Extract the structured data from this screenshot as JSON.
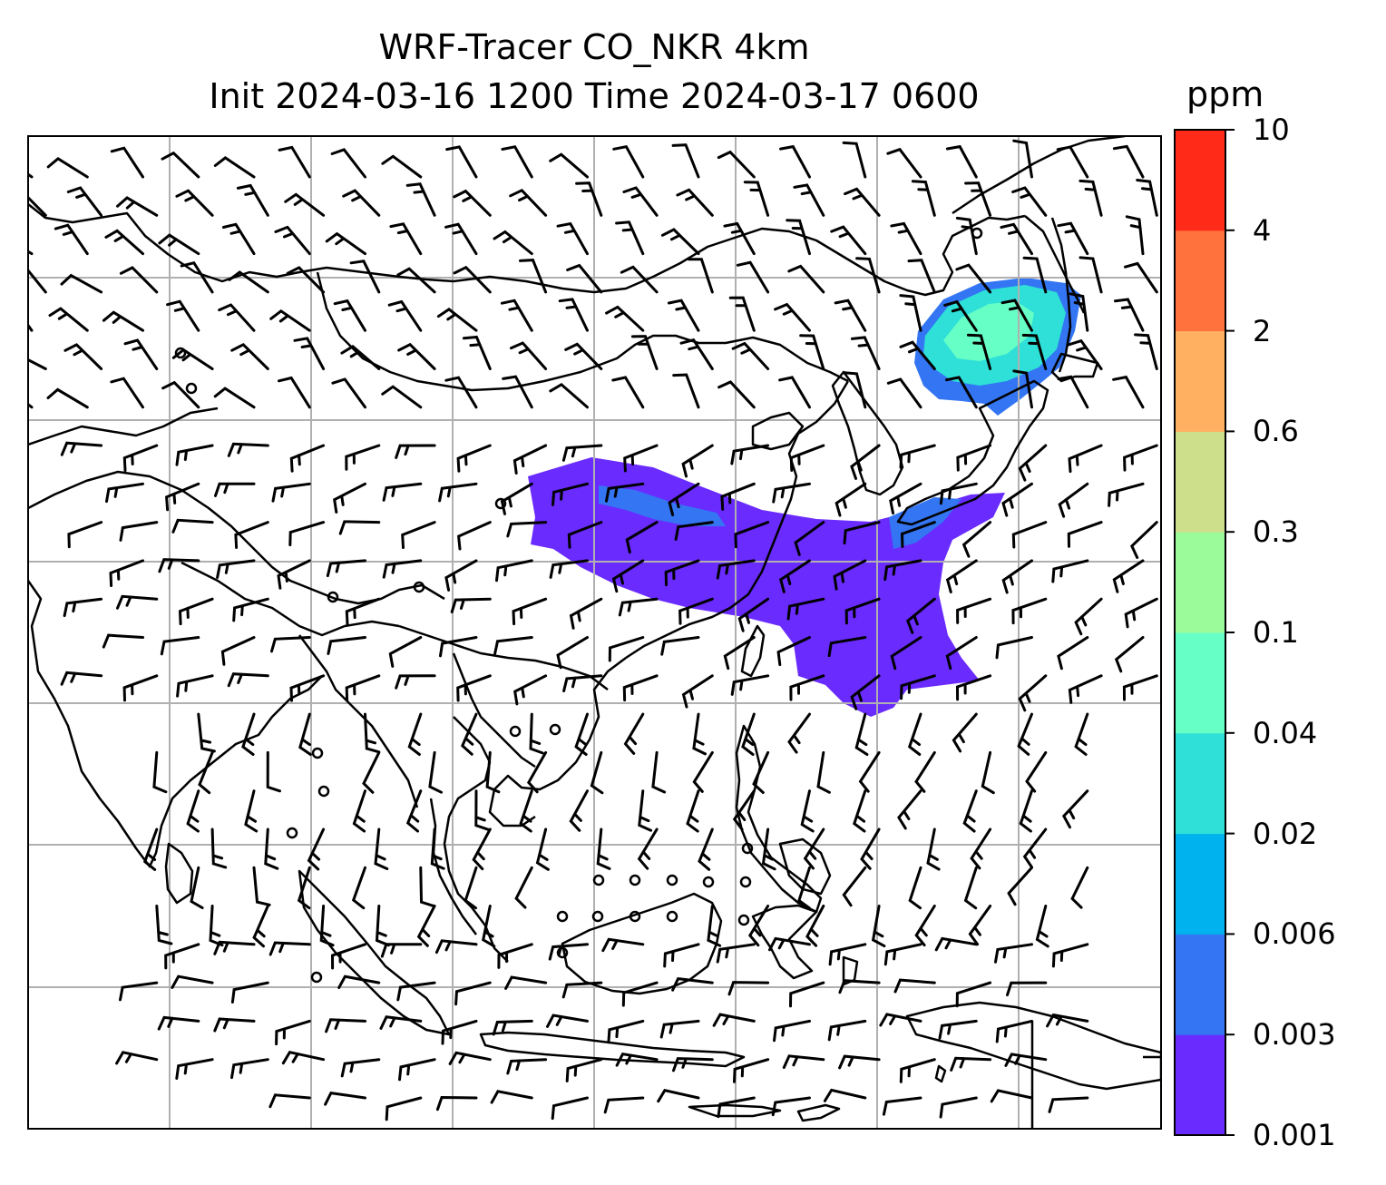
{
  "title": {
    "line1": "WRF-Tracer CO_NKR 4km",
    "line2": "Init 2024-03-16 1200 Time 2024-03-17 0600"
  },
  "colorbar": {
    "unit": "ppm",
    "ticks": [
      "0.001",
      "0.003",
      "0.006",
      "0.02",
      "0.04",
      "0.1",
      "0.3",
      "0.6",
      "2",
      "4",
      "10"
    ],
    "colors": [
      "#6a2bff",
      "#3375f2",
      "#00b2ee",
      "#2ee0d7",
      "#66ffc6",
      "#9bfb9a",
      "#cddf8a",
      "#ffb061",
      "#ff723e",
      "#ff2a18"
    ]
  },
  "map": {
    "features": [
      "coastlines",
      "country-borders",
      "lat-lon-gridlines",
      "wind-barbs",
      "tracer-concentration"
    ],
    "gridline_color": "#b0b0b0",
    "plume_colors": {
      "low": "#6a2bff",
      "mid": "#3375f2",
      "high": "#2ee0d7",
      "core": "#66ffc6"
    }
  }
}
